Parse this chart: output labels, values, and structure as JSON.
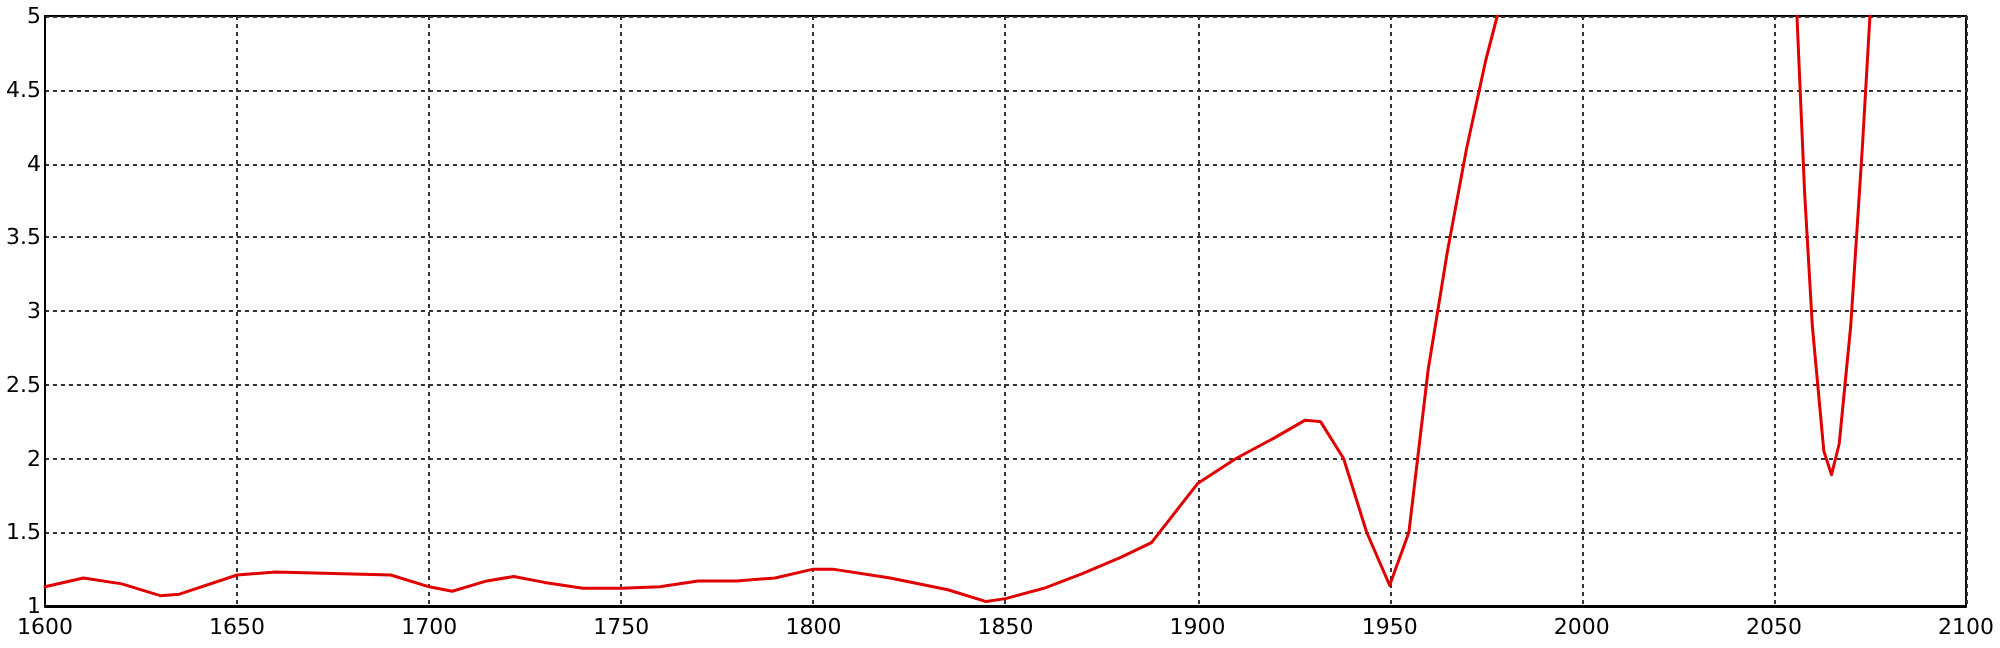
{
  "chart_data": {
    "type": "line",
    "x": [
      1600,
      1610,
      1620,
      1630,
      1635,
      1650,
      1660,
      1675,
      1690,
      1700,
      1706,
      1715,
      1722,
      1730,
      1740,
      1750,
      1760,
      1770,
      1780,
      1790,
      1800,
      1805,
      1820,
      1835,
      1845,
      1850,
      1860,
      1870,
      1880,
      1888,
      1900,
      1910,
      1920,
      1928,
      1932,
      1938,
      1944,
      1950,
      1955,
      1960,
      1965,
      1970,
      1975,
      1978,
      2017,
      2056,
      2058,
      2060,
      2063,
      2065,
      2067,
      2070,
      2073,
      2075
    ],
    "series": [
      {
        "color": "#e00000",
        "values": [
          1.13,
          1.19,
          1.15,
          1.07,
          1.08,
          1.21,
          1.23,
          1.22,
          1.21,
          1.13,
          1.1,
          1.17,
          1.2,
          1.16,
          1.12,
          1.12,
          1.13,
          1.17,
          1.17,
          1.19,
          1.25,
          1.25,
          1.19,
          1.11,
          1.03,
          1.05,
          1.12,
          1.22,
          1.33,
          1.43,
          1.83,
          2.0,
          2.14,
          2.26,
          2.25,
          2.0,
          1.5,
          1.14,
          1.5,
          2.6,
          3.4,
          4.1,
          4.7,
          5.0,
          null,
          5.0,
          3.8,
          2.9,
          2.05,
          1.89,
          2.1,
          2.9,
          4.1,
          5.0
        ]
      }
    ],
    "xlim": [
      1600,
      2100
    ],
    "xticks": [
      1600,
      1650,
      1700,
      1750,
      1800,
      1850,
      1900,
      1950,
      2000,
      2050,
      2100
    ],
    "ylim": [
      1,
      5
    ],
    "yticks": [
      1,
      1.5,
      2,
      2.5,
      3,
      3.5,
      4,
      4.5,
      5
    ],
    "grid": true,
    "marker": "none",
    "line_style": "solid"
  }
}
